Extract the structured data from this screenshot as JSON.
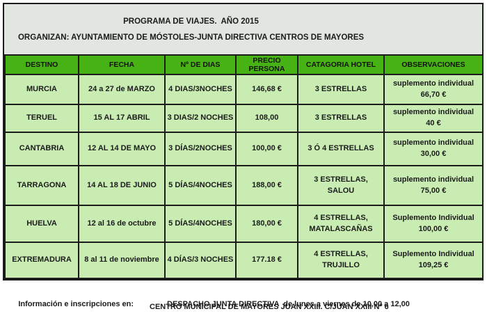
{
  "header": {
    "title": "PROGRAMA DE VIAJES.  AÑO 2015",
    "subtitle": "ORGANIZAN: AYUNTAMIENTO DE MÓSTOLES-JUNTA DIRECTIVA CENTROS DE MAYORES"
  },
  "table": {
    "columns": [
      "DESTINO",
      "FECHA",
      "Nº DE DIAS",
      "PRECIO PERSONA",
      "CATAGORIA HOTEL",
      "OBSERVACIONES"
    ],
    "rows": [
      {
        "destino": "MURCIA",
        "fecha": "24 a 27 de MARZO",
        "dias": "4 DIAS/3NOCHES",
        "precio": "146,68 €",
        "hotel": "3  ESTRELLAS",
        "observaciones": "suplemento individual\n66,70 €"
      },
      {
        "destino": "TERUEL",
        "fecha": "15 AL 17 ABRIL",
        "dias": "3 DIAS/2 NOCHES",
        "precio": "108,00",
        "hotel": "3 ESTRELLAS",
        "observaciones": "suplemento individual\n40 €"
      },
      {
        "destino": "CANTABRIA",
        "fecha": "12 AL 14 DE MAYO",
        "dias": "3 DÍAS/2NOCHES",
        "precio": "100,00 €",
        "hotel": "3 Ó 4 ESTRELLAS",
        "observaciones": "suplemento individual\n30,00 €"
      },
      {
        "destino": "TARRAGONA",
        "fecha": "14 AL 18 DE JUNIO",
        "dias": "5 DÍAS/4NOCHES",
        "precio": "188,00 €",
        "hotel": "3 ESTRELLAS,\nSALOU",
        "observaciones": "suplemento individual\n75,00 €"
      },
      {
        "destino": "HUELVA",
        "fecha": "12 al 16 de octubre",
        "dias": "5 DÍAS/4NOCHES",
        "precio": "180,00 €",
        "hotel": "4 ESTRELLAS,\nMATALASCAÑAS",
        "observaciones": "Suplemento Individual\n100,00 €"
      },
      {
        "destino": "EXTREMADURA",
        "fecha": "8 al 11 de noviembre",
        "dias": "4 DÍAS/3 NOCHES",
        "precio": "177.18 €",
        "hotel": "4 ESTRELLAS,\nTRUJILLO",
        "observaciones": "Suplemento Individual\n109,25 €"
      }
    ]
  },
  "footer": {
    "label": "Información e inscripciones en:",
    "line1": "DESPACHO JUNTA DIRECTIVA  de lunes a viernes de 10,00 a 12,00",
    "line2": "CENTRO MUNICIPAL DE MAYORES JUAN XXIII. C/JUAN XXIII Nº 6"
  },
  "colors": {
    "header_row_green": "#47b214",
    "cell_green": "#c9ecb3",
    "title_box_gray": "#e2e6e1",
    "border_black": "#1c1c1c"
  }
}
